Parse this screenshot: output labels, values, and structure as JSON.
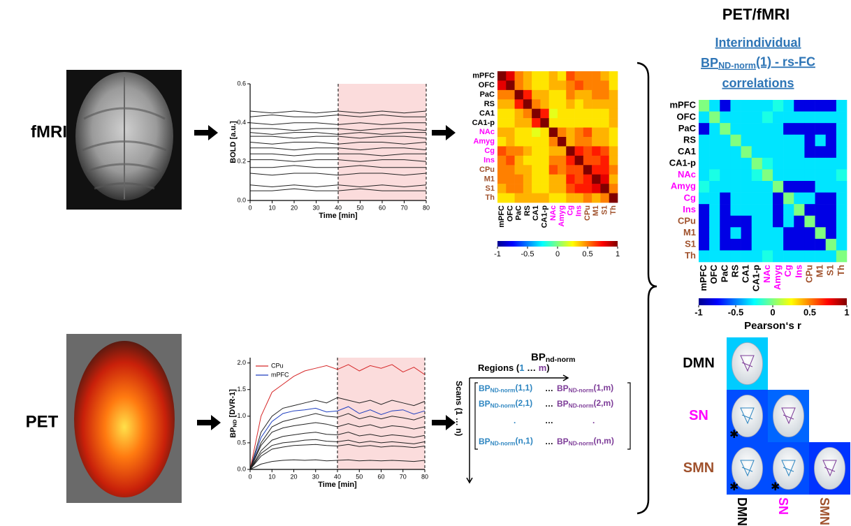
{
  "labels": {
    "fmri": "fMRI",
    "pet": "PET",
    "right_title": "PET/fMRI",
    "subtitle": [
      "Interindividual",
      {
        "main": "BP",
        "sub": "ND-norm",
        "tail": "(1) - rs-FC"
      },
      "correlations"
    ]
  },
  "chart_data": [
    {
      "type": "line",
      "ylabel": "BOLD [a.u.]",
      "xlabel": "Time [min]",
      "xlim": [
        0,
        80
      ],
      "ylim": [
        0,
        0.6
      ],
      "xticks": [
        0,
        10,
        20,
        30,
        40,
        50,
        60,
        70,
        80
      ],
      "yticks": [
        {
          "value": 0,
          "label": "0.0"
        },
        0.2,
        0.4,
        0.6
      ],
      "highlight_x": [
        40,
        80
      ],
      "x": [
        0,
        10,
        20,
        30,
        40,
        50,
        60,
        70,
        80
      ],
      "series": [
        {
          "color": "#222",
          "values": [
            0.46,
            0.45,
            0.46,
            0.45,
            0.46,
            0.45,
            0.46,
            0.45,
            0.46
          ]
        },
        {
          "color": "#222",
          "values": [
            0.43,
            0.44,
            0.43,
            0.43,
            0.44,
            0.43,
            0.44,
            0.43,
            0.43
          ]
        },
        {
          "color": "#222",
          "values": [
            0.4,
            0.39,
            0.4,
            0.4,
            0.39,
            0.4,
            0.39,
            0.4,
            0.4
          ]
        },
        {
          "color": "#222",
          "values": [
            0.37,
            0.37,
            0.36,
            0.37,
            0.37,
            0.36,
            0.37,
            0.37,
            0.36
          ]
        },
        {
          "color": "#222",
          "values": [
            0.35,
            0.34,
            0.35,
            0.35,
            0.34,
            0.35,
            0.34,
            0.35,
            0.35
          ]
        },
        {
          "color": "#222",
          "values": [
            0.33,
            0.33,
            0.32,
            0.33,
            0.33,
            0.32,
            0.33,
            0.33,
            0.32
          ]
        },
        {
          "color": "#222",
          "values": [
            0.3,
            0.29,
            0.3,
            0.3,
            0.29,
            0.3,
            0.3,
            0.29,
            0.3
          ]
        },
        {
          "color": "#222",
          "values": [
            0.27,
            0.27,
            0.26,
            0.27,
            0.27,
            0.26,
            0.27,
            0.27,
            0.26
          ]
        },
        {
          "color": "#222",
          "values": [
            0.24,
            0.24,
            0.23,
            0.24,
            0.24,
            0.24,
            0.23,
            0.24,
            0.24
          ]
        },
        {
          "color": "#222",
          "values": [
            0.21,
            0.21,
            0.2,
            0.21,
            0.21,
            0.2,
            0.21,
            0.21,
            0.2
          ]
        },
        {
          "color": "#222",
          "values": [
            0.17,
            0.17,
            0.18,
            0.17,
            0.17,
            0.18,
            0.17,
            0.17,
            0.17
          ]
        },
        {
          "color": "#222",
          "values": [
            0.14,
            0.13,
            0.14,
            0.14,
            0.13,
            0.14,
            0.14,
            0.13,
            0.14
          ]
        },
        {
          "color": "#222",
          "values": [
            0.08,
            0.07,
            0.08,
            0.07,
            0.08,
            0.07,
            0.08,
            0.07,
            0.08
          ]
        },
        {
          "color": "#222",
          "values": [
            0.05,
            0.05,
            0.06,
            0.05,
            0.05,
            0.06,
            0.05,
            0.05,
            0.05
          ]
        }
      ]
    },
    {
      "type": "line",
      "ylabel": {
        "main": "BP",
        "sub": "ND",
        "tail": " [DVR-1]"
      },
      "xlabel": "Time [min]",
      "xlim": [
        0,
        80
      ],
      "ylim": [
        0,
        2.1
      ],
      "xticks": [
        0,
        10,
        20,
        30,
        40,
        50,
        60,
        70,
        80
      ],
      "yticks": [
        {
          "value": 0,
          "label": "0.0"
        },
        0.5,
        {
          "value": 1,
          "label": "1.0"
        },
        1.5,
        {
          "value": 2,
          "label": "2.0"
        }
      ],
      "highlight_x": [
        40,
        80
      ],
      "legend": "upper left",
      "x": [
        0,
        5,
        10,
        15,
        20,
        25,
        30,
        35,
        40,
        45,
        50,
        55,
        60,
        65,
        70,
        75,
        80
      ],
      "series": [
        {
          "name": "CPu",
          "color": "#d62728",
          "values": [
            0,
            1.0,
            1.45,
            1.6,
            1.75,
            1.85,
            1.9,
            1.95,
            1.88,
            1.97,
            1.85,
            1.95,
            1.9,
            1.97,
            1.83,
            1.92,
            1.78
          ]
        },
        {
          "name": "mPFC",
          "color": "#1f3fbf",
          "values": [
            0,
            0.6,
            0.9,
            1.05,
            1.1,
            1.12,
            1.15,
            1.08,
            1.1,
            1.18,
            1.05,
            1.12,
            1.03,
            1.1,
            1.12,
            1.04,
            1.1
          ]
        },
        {
          "color": "#222",
          "values": [
            0,
            0.7,
            1.0,
            1.15,
            1.2,
            1.25,
            1.3,
            1.25,
            1.35,
            1.3,
            1.25,
            1.3,
            1.22,
            1.3,
            1.25,
            1.2,
            1.28
          ]
        },
        {
          "color": "#222",
          "values": [
            0,
            0.5,
            0.8,
            0.9,
            0.95,
            1.0,
            1.05,
            1.0,
            0.98,
            1.05,
            0.95,
            1.0,
            0.95,
            1.0,
            0.97,
            0.93,
            1.0
          ]
        },
        {
          "color": "#222",
          "values": [
            0,
            0.45,
            0.7,
            0.78,
            0.82,
            0.85,
            0.88,
            0.85,
            0.8,
            0.86,
            0.8,
            0.84,
            0.78,
            0.82,
            0.8,
            0.76,
            0.8
          ]
        },
        {
          "color": "#222",
          "values": [
            0,
            0.35,
            0.55,
            0.62,
            0.65,
            0.68,
            0.7,
            0.66,
            0.65,
            0.7,
            0.63,
            0.66,
            0.62,
            0.65,
            0.63,
            0.6,
            0.64
          ]
        },
        {
          "color": "#222",
          "values": [
            0,
            0.3,
            0.45,
            0.5,
            0.52,
            0.55,
            0.56,
            0.53,
            0.52,
            0.55,
            0.5,
            0.53,
            0.5,
            0.52,
            0.5,
            0.48,
            0.52
          ]
        },
        {
          "color": "#222",
          "values": [
            0,
            0.25,
            0.38,
            0.42,
            0.45,
            0.46,
            0.47,
            0.45,
            0.44,
            0.47,
            0.43,
            0.45,
            0.42,
            0.44,
            0.43,
            0.41,
            0.44
          ]
        },
        {
          "color": "#222",
          "values": [
            0,
            0.1,
            0.15,
            0.17,
            0.18,
            0.17,
            0.18,
            0.16,
            0.17,
            0.18,
            0.16,
            0.17,
            0.16,
            0.17,
            0.16,
            0.15,
            0.17
          ]
        }
      ]
    },
    {
      "type": "heatmap",
      "categories": [
        "mPFC",
        "OFC",
        "PaC",
        "RS",
        "CA1",
        "CA1-p",
        "NAc",
        "Amyg",
        "Cg",
        "Ins",
        "CPu",
        "M1",
        "S1",
        "Th"
      ],
      "label_colors": [
        "#000",
        "#000",
        "#000",
        "#000",
        "#000",
        "#000",
        "#ff00ff",
        "#ff00ff",
        "#ff00ff",
        "#ff00ff",
        "#a0522d",
        "#a0522d",
        "#a0522d",
        "#a0522d"
      ],
      "clim": [
        -1,
        1
      ],
      "cticks": [
        -1,
        -0.5,
        0,
        0.5,
        1
      ],
      "values": [
        [
          1,
          0.8,
          0.5,
          0.4,
          0.3,
          0.3,
          0.4,
          0.3,
          0.6,
          0.5,
          0.5,
          0.5,
          0.4,
          0.3
        ],
        [
          0.8,
          1,
          0.5,
          0.4,
          0.3,
          0.3,
          0.4,
          0.4,
          0.5,
          0.6,
          0.5,
          0.5,
          0.5,
          0.3
        ],
        [
          0.5,
          0.5,
          1,
          0.7,
          0.4,
          0.4,
          0.3,
          0.3,
          0.5,
          0.4,
          0.4,
          0.5,
          0.5,
          0.4
        ],
        [
          0.4,
          0.4,
          0.7,
          1,
          0.5,
          0.4,
          0.3,
          0.3,
          0.4,
          0.3,
          0.4,
          0.4,
          0.4,
          0.4
        ],
        [
          0.3,
          0.3,
          0.4,
          0.5,
          1,
          0.7,
          0.2,
          0.3,
          0.3,
          0.3,
          0.3,
          0.3,
          0.3,
          0.4
        ],
        [
          0.3,
          0.3,
          0.4,
          0.4,
          0.7,
          1,
          0.3,
          0.3,
          0.3,
          0.3,
          0.3,
          0.3,
          0.3,
          0.4
        ],
        [
          0.4,
          0.4,
          0.3,
          0.3,
          0.2,
          0.3,
          1,
          0.5,
          0.4,
          0.5,
          0.6,
          0.4,
          0.4,
          0.3
        ],
        [
          0.3,
          0.4,
          0.3,
          0.3,
          0.3,
          0.3,
          0.5,
          1,
          0.4,
          0.5,
          0.5,
          0.4,
          0.4,
          0.3
        ],
        [
          0.6,
          0.5,
          0.5,
          0.4,
          0.3,
          0.3,
          0.4,
          0.4,
          1,
          0.7,
          0.6,
          0.7,
          0.6,
          0.4
        ],
        [
          0.5,
          0.6,
          0.4,
          0.3,
          0.3,
          0.3,
          0.5,
          0.5,
          0.7,
          1,
          0.6,
          0.6,
          0.7,
          0.4
        ],
        [
          0.5,
          0.5,
          0.4,
          0.4,
          0.3,
          0.3,
          0.6,
          0.5,
          0.6,
          0.6,
          1,
          0.7,
          0.7,
          0.5
        ],
        [
          0.5,
          0.5,
          0.5,
          0.4,
          0.3,
          0.3,
          0.4,
          0.4,
          0.7,
          0.6,
          0.7,
          1,
          0.8,
          0.4
        ],
        [
          0.4,
          0.5,
          0.5,
          0.4,
          0.3,
          0.3,
          0.4,
          0.4,
          0.6,
          0.7,
          0.7,
          0.8,
          1,
          0.5
        ],
        [
          0.3,
          0.3,
          0.4,
          0.4,
          0.4,
          0.4,
          0.3,
          0.3,
          0.4,
          0.4,
          0.5,
          0.4,
          0.5,
          1
        ]
      ]
    },
    {
      "type": "heatmap",
      "categories": [
        "mPFC",
        "OFC",
        "PaC",
        "RS",
        "CA1",
        "CA1-p",
        "NAc",
        "Amyg",
        "Cg",
        "Ins",
        "CPu",
        "M1",
        "S1",
        "Th"
      ],
      "label_colors": [
        "#000",
        "#000",
        "#000",
        "#000",
        "#000",
        "#000",
        "#ff00ff",
        "#ff00ff",
        "#ff00ff",
        "#ff00ff",
        "#a0522d",
        "#a0522d",
        "#a0522d",
        "#a0522d"
      ],
      "clim": [
        -1,
        1
      ],
      "cticks": [
        -1,
        -0.5,
        0,
        0.5,
        1
      ],
      "clabel": "Pearson‘s r",
      "values": [
        [
          0,
          -0.3,
          -0.8,
          -0.3,
          -0.3,
          -0.3,
          -0.3,
          -0.2,
          -0.3,
          -0.8,
          -0.8,
          -0.8,
          -0.8,
          -0.3
        ],
        [
          -0.3,
          0,
          -0.3,
          -0.3,
          -0.3,
          -0.3,
          -0.2,
          -0.3,
          -0.3,
          -0.3,
          -0.3,
          -0.3,
          -0.3,
          -0.3
        ],
        [
          -0.8,
          -0.3,
          0,
          -0.3,
          -0.3,
          -0.3,
          -0.3,
          -0.3,
          -0.8,
          -0.8,
          -0.8,
          -0.8,
          -0.8,
          -0.3
        ],
        [
          -0.3,
          -0.3,
          -0.3,
          0,
          -0.3,
          -0.3,
          -0.3,
          -0.3,
          -0.3,
          -0.3,
          -0.8,
          -0.3,
          -0.8,
          -0.3
        ],
        [
          -0.3,
          -0.3,
          -0.3,
          -0.3,
          0,
          -0.3,
          -0.3,
          -0.3,
          -0.3,
          -0.3,
          -0.8,
          -0.8,
          -0.8,
          -0.3
        ],
        [
          -0.3,
          -0.3,
          -0.3,
          -0.3,
          -0.3,
          0,
          -0.2,
          -0.3,
          -0.3,
          -0.3,
          -0.3,
          -0.3,
          -0.3,
          -0.3
        ],
        [
          -0.3,
          -0.2,
          -0.3,
          -0.3,
          -0.3,
          -0.2,
          0,
          -0.3,
          -0.3,
          -0.3,
          -0.3,
          -0.3,
          -0.3,
          -0.2
        ],
        [
          -0.2,
          -0.3,
          -0.3,
          -0.3,
          -0.3,
          -0.3,
          -0.3,
          0,
          -0.8,
          -0.8,
          -0.8,
          -0.3,
          -0.3,
          -0.3
        ],
        [
          -0.3,
          -0.3,
          -0.8,
          -0.3,
          -0.3,
          -0.3,
          -0.3,
          -0.8,
          0,
          -0.3,
          -0.3,
          -0.8,
          -0.8,
          -0.3
        ],
        [
          -0.8,
          -0.3,
          -0.8,
          -0.3,
          -0.3,
          -0.3,
          -0.3,
          -0.8,
          -0.3,
          0,
          -0.8,
          -0.8,
          -0.8,
          -0.3
        ],
        [
          -0.8,
          -0.3,
          -0.8,
          -0.8,
          -0.8,
          -0.3,
          -0.3,
          -0.8,
          -0.3,
          -0.8,
          0,
          -0.8,
          -0.8,
          -0.3
        ],
        [
          -0.8,
          -0.3,
          -0.8,
          -0.3,
          -0.8,
          -0.3,
          -0.3,
          -0.3,
          -0.8,
          -0.8,
          -0.8,
          0,
          -0.8,
          -0.3
        ],
        [
          -0.8,
          -0.3,
          -0.8,
          -0.8,
          -0.8,
          -0.3,
          -0.3,
          -0.3,
          -0.8,
          -0.8,
          -0.8,
          -0.8,
          0,
          -0.3
        ],
        [
          -0.3,
          -0.3,
          -0.3,
          -0.3,
          -0.3,
          -0.3,
          -0.2,
          -0.3,
          -0.3,
          -0.3,
          -0.3,
          -0.3,
          -0.3,
          0
        ]
      ]
    }
  ],
  "bp_matrix": {
    "title": {
      "main": "BP",
      "sub": "nd-norm"
    },
    "regions": {
      "open": "Regions (",
      "first": "1",
      "dots": " … ",
      "last": "m",
      "close": ")"
    },
    "scans": "Scans (1 … n)",
    "rows": [
      [
        {
          "main": "BP",
          "sub": "ND-norm",
          "tail": "(1,1)"
        },
        "…",
        {
          "main": "BP",
          "sub": "ND-norm",
          "tail": "(1,m)"
        }
      ],
      [
        {
          "main": "BP",
          "sub": "ND-norm",
          "tail": "(2,1)"
        },
        "…",
        {
          "main": "BP",
          "sub": "ND-norm",
          "tail": "(2,m)"
        }
      ],
      [
        ".",
        "…",
        "."
      ],
      [
        {
          "main": "BP",
          "sub": "ND-norm",
          "tail": "(n,1)"
        },
        "…",
        {
          "main": "BP",
          "sub": "ND-norm",
          "tail": "(n,m)"
        }
      ]
    ]
  },
  "networks": {
    "labels": [
      "DMN",
      "SN",
      "SMN"
    ],
    "label_colors": [
      "#000",
      "#ff00ff",
      "#a0522d"
    ],
    "clim": [
      -1,
      1
    ],
    "values": [
      [
        -0.35
      ],
      [
        -0.6,
        -0.55
      ],
      [
        -0.6,
        -0.6,
        -0.65
      ]
    ],
    "significance": [
      [
        null
      ],
      [
        "✱",
        null
      ],
      [
        "✱",
        "✱",
        null
      ]
    ]
  }
}
